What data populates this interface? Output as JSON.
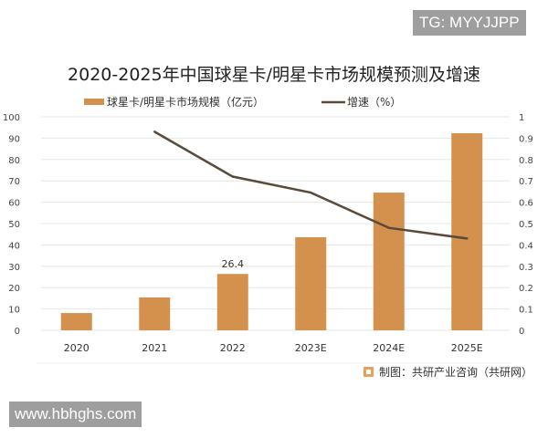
{
  "watermark_top": "TG: MYYJJPP",
  "watermark_bottom": "www.hbhghs.com",
  "source": "制图：共研产业咨询（共研网）",
  "chart_data": {
    "type": "bar",
    "title": "2020-2025年中国球星卡/明星卡市场规模预测及增速",
    "categories": [
      "2020",
      "2021",
      "2022",
      "2023E",
      "2024E",
      "2025E"
    ],
    "series": [
      {
        "name": "球星卡/明星卡市场规模（亿元）",
        "type": "bar",
        "axis": "left",
        "color": "#d4914e",
        "values": [
          8.1,
          15.4,
          26.4,
          43.6,
          64.5,
          92.3
        ]
      },
      {
        "name": "增速（%）",
        "type": "line",
        "axis": "right",
        "color": "#5a4a3c",
        "values": [
          null,
          0.93,
          0.72,
          0.645,
          0.48,
          0.43
        ]
      }
    ],
    "data_labels": {
      "2022": "26.4"
    },
    "y_left": {
      "range": [
        0,
        100
      ],
      "ticks": [
        "0",
        "10",
        "20",
        "30",
        "40",
        "50",
        "60",
        "70",
        "80",
        "90",
        "100"
      ]
    },
    "y_right": {
      "range": [
        0,
        1
      ],
      "ticks": [
        "0",
        "0.1",
        "0.2",
        "0.3",
        "0.4",
        "0.5",
        "0.6",
        "0.7",
        "0.8",
        "0.9",
        "1"
      ]
    },
    "grid": true,
    "legend": "top"
  }
}
